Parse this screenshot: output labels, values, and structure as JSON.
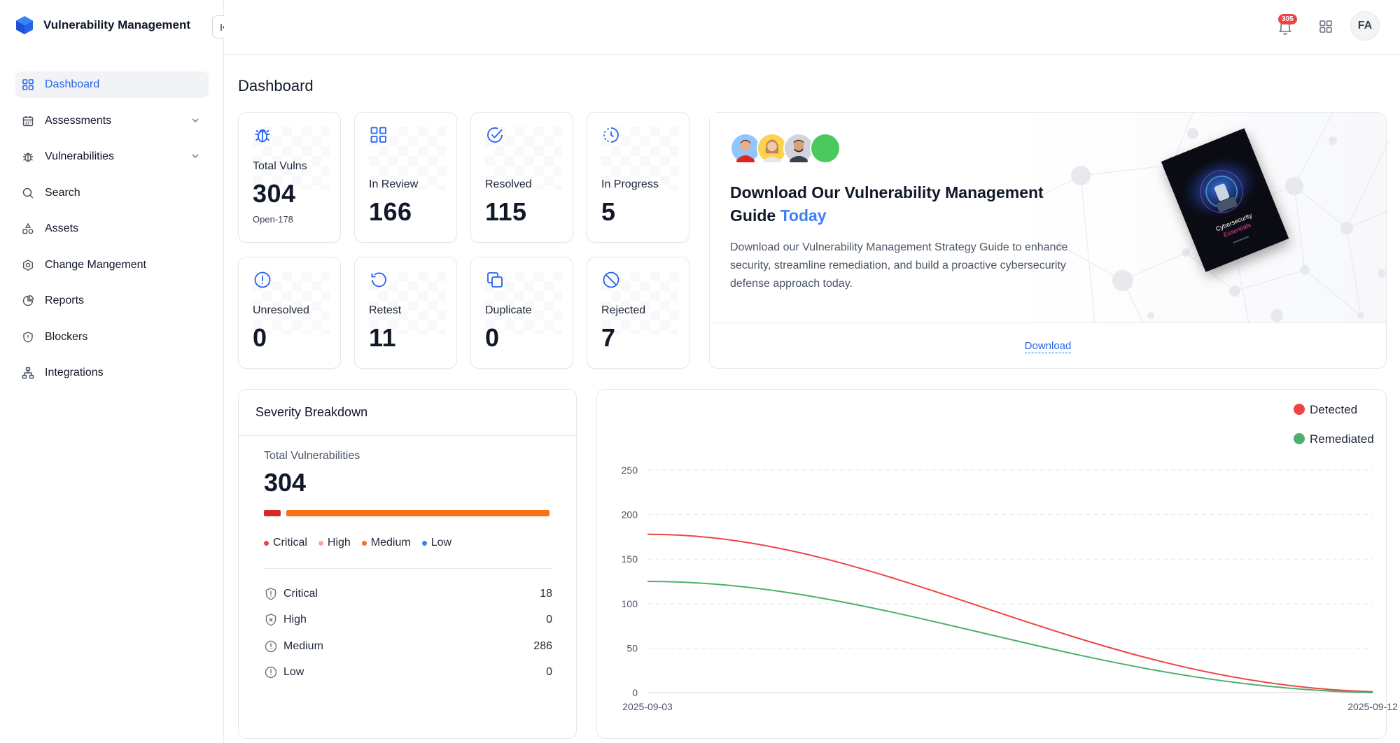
{
  "app": {
    "title": "Vulnerability Management"
  },
  "sidebar": {
    "items": [
      {
        "label": "Dashboard",
        "icon": "dashboard-icon",
        "active": true
      },
      {
        "label": "Assessments",
        "icon": "calendar-icon",
        "has_children": true
      },
      {
        "label": "Vulnerabilities",
        "icon": "bug-icon",
        "has_children": true
      },
      {
        "label": "Search",
        "icon": "search-icon"
      },
      {
        "label": "Assets",
        "icon": "assets-icon"
      },
      {
        "label": "Change Mangement",
        "icon": "settings-hex-icon"
      },
      {
        "label": "Reports",
        "icon": "pie-chart-icon"
      },
      {
        "label": "Blockers",
        "icon": "shield-icon"
      },
      {
        "label": "Integrations",
        "icon": "sitemap-icon"
      }
    ]
  },
  "topbar": {
    "notification_count": "305",
    "avatar_initials": "FA"
  },
  "page": {
    "title": "Dashboard"
  },
  "stats": [
    {
      "label": "Total Vulns",
      "value": "304",
      "sub": "Open-178",
      "icon": "bug-icon"
    },
    {
      "label": "In Review",
      "value": "166",
      "icon": "grid-icon"
    },
    {
      "label": "Resolved",
      "value": "115",
      "icon": "check-circle-icon"
    },
    {
      "label": "In Progress",
      "value": "5",
      "icon": "clock-dashed-icon"
    },
    {
      "label": "Unresolved",
      "value": "0",
      "icon": "alert-circle-icon"
    },
    {
      "label": "Retest",
      "value": "11",
      "icon": "rotate-ccw-icon"
    },
    {
      "label": "Duplicate",
      "value": "0",
      "icon": "copy-icon"
    },
    {
      "label": "Rejected",
      "value": "7",
      "icon": "ban-icon"
    }
  ],
  "promo": {
    "title_main": "Download Our Vulnerability Management Guide ",
    "title_accent": "Today",
    "description": "Download our Vulnerability Management Strategy Guide to enhance security, streamline remediation, and build a proactive cybersecurity defense approach today.",
    "link": "Download",
    "book_title_1": "Cybersecurity",
    "book_title_2": "Essentials"
  },
  "severity": {
    "title": "Severity Breakdown",
    "subtitle": "Total Vulnerabilities",
    "total": "304",
    "legend": [
      {
        "label": "Critical",
        "color": "#ef4444"
      },
      {
        "label": "High",
        "color": "#fca5a5"
      },
      {
        "label": "Medium",
        "color": "#f97316"
      },
      {
        "label": "Low",
        "color": "#3b82f6"
      }
    ],
    "bar": [
      {
        "fraction": 0.059,
        "color": "#dc2626"
      },
      {
        "fraction": 0.941,
        "color": "#f97316"
      }
    ],
    "rows": [
      {
        "label": "Critical",
        "value": "18",
        "icon": "shield-alert-icon"
      },
      {
        "label": "High",
        "value": "0",
        "icon": "shield-x-icon"
      },
      {
        "label": "Medium",
        "value": "286",
        "icon": "alert-circle-icon"
      },
      {
        "label": "Low",
        "value": "0",
        "icon": "alert-circle-icon"
      }
    ]
  },
  "chart_data": {
    "type": "line",
    "x": [
      "2025-09-03",
      "2025-09-12"
    ],
    "series": [
      {
        "name": "Detected",
        "color": "#ef4444",
        "values": [
          178,
          1
        ]
      },
      {
        "name": "Remediated",
        "color": "#4caf6e",
        "values": [
          125,
          0
        ]
      }
    ],
    "ylim": [
      0,
      250
    ],
    "yticks": [
      0,
      50,
      100,
      150,
      200,
      250
    ],
    "grid": true,
    "legend_position": "top-right"
  }
}
